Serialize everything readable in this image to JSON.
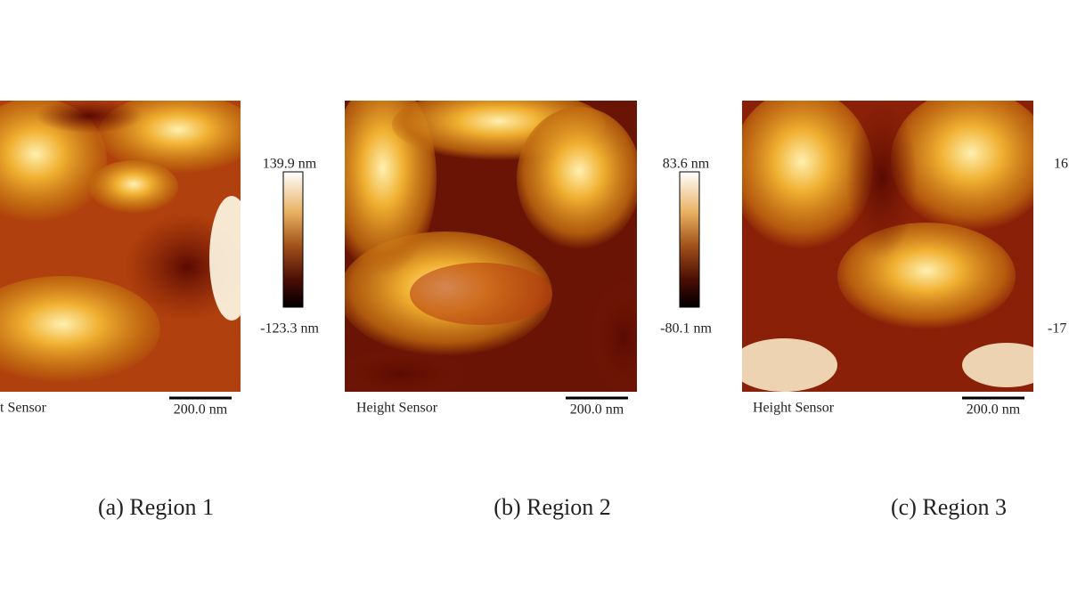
{
  "panels": [
    {
      "caption": "(a) Region 1",
      "sensor_label": "t Sensor",
      "scale_bar": "200.0 nm",
      "colorbar_max": "139.9 nm",
      "colorbar_min": "-123.3 nm"
    },
    {
      "caption": "(b) Region 2",
      "sensor_label": "Height Sensor",
      "scale_bar": "200.0 nm",
      "colorbar_max": "83.6 nm",
      "colorbar_min": "-80.1 nm"
    },
    {
      "caption": "(c) Region 3",
      "sensor_label": "Height Sensor",
      "scale_bar": "200.0 nm",
      "colorbar_max": "16",
      "colorbar_min": "-17"
    }
  ]
}
